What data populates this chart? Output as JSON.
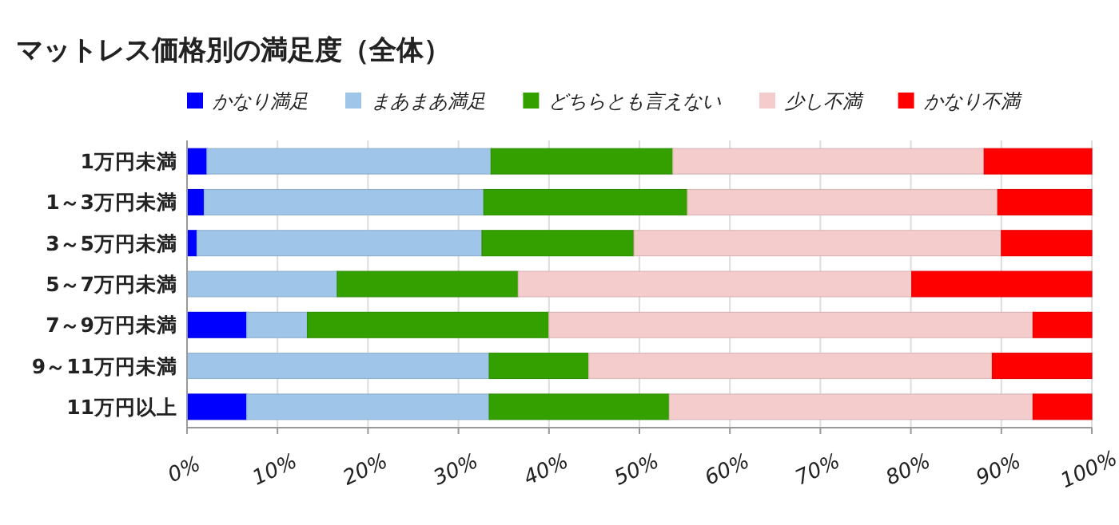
{
  "chart_data": {
    "type": "bar",
    "orientation": "horizontal",
    "stacked": true,
    "title": "マットレス価格別の満足度（全体）",
    "categories": [
      "1万円未満",
      "1～3万円未満",
      "3～5万円未満",
      "5～7万円未満",
      "7～9万円未満",
      "9～11万円未満",
      "11万円以上"
    ],
    "series": [
      {
        "name": "かなり満足",
        "color": "#0000ff",
        "values": [
          2.2,
          1.9,
          1.1,
          0,
          6.6,
          0,
          6.6
        ]
      },
      {
        "name": "まあまあ満足",
        "color": "#9fc5e8",
        "values": [
          31.4,
          30.9,
          31.5,
          16.6,
          6.7,
          33.4,
          26.8
        ]
      },
      {
        "name": "どちらとも言えない",
        "color": "#33a000",
        "values": [
          20.1,
          22.5,
          16.8,
          20.0,
          26.7,
          11.0,
          19.9
        ]
      },
      {
        "name": "少し不満",
        "color": "#f4cccc",
        "values": [
          34.4,
          34.3,
          40.6,
          43.5,
          53.5,
          44.6,
          40.2
        ]
      },
      {
        "name": "かなり不満",
        "color": "#ff0000",
        "values": [
          11.9,
          10.4,
          10.0,
          19.9,
          6.5,
          11.0,
          6.5
        ]
      }
    ],
    "xlim": [
      0,
      100
    ],
    "xticks": [
      {
        "value": 0,
        "label": "0%"
      },
      {
        "value": 10,
        "label": "10%"
      },
      {
        "value": 20,
        "label": "20%"
      },
      {
        "value": 30,
        "label": "30%"
      },
      {
        "value": 40,
        "label": "40%"
      },
      {
        "value": 50,
        "label": "50%"
      },
      {
        "value": 60,
        "label": "60%"
      },
      {
        "value": 70,
        "label": "70%"
      },
      {
        "value": 80,
        "label": "80%"
      },
      {
        "value": 90,
        "label": "90%"
      },
      {
        "value": 100,
        "label": "100%"
      }
    ],
    "grid": "x",
    "legend": "top"
  }
}
